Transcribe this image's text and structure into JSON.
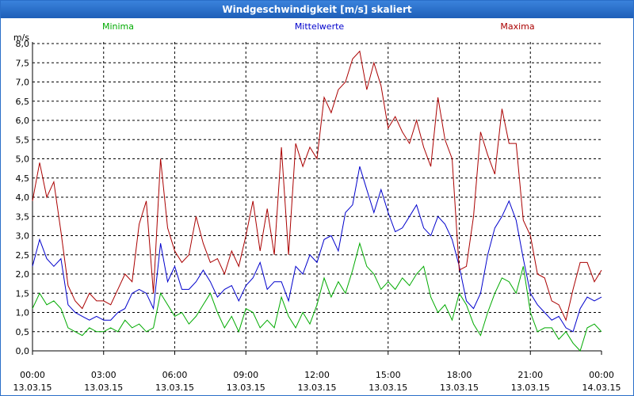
{
  "window": {
    "title": "Windgeschwindigkeit [m/s] skaliert"
  },
  "chart_data": {
    "type": "line",
    "title": "Windgeschwindigkeit [m/s] skaliert",
    "ylabel": "m/s",
    "ylim": [
      0,
      8
    ],
    "yticks": [
      "0,0",
      "0,5",
      "1,0",
      "1,5",
      "2,0",
      "2,5",
      "3,0",
      "3,5",
      "4,0",
      "4,5",
      "5,0",
      "5,5",
      "6,0",
      "6,5",
      "7,0",
      "7,5",
      "8,0"
    ],
    "xlim_hours": [
      0,
      24
    ],
    "xticks": [
      {
        "time": "00:00",
        "date": "13.03.15"
      },
      {
        "time": "03:00",
        "date": "13.03.15"
      },
      {
        "time": "06:00",
        "date": "13.03.15"
      },
      {
        "time": "09:00",
        "date": "13.03.15"
      },
      {
        "time": "12:00",
        "date": "13.03.15"
      },
      {
        "time": "15:00",
        "date": "13.03.15"
      },
      {
        "time": "18:00",
        "date": "13.03.15"
      },
      {
        "time": "21:00",
        "date": "13.03.15"
      },
      {
        "time": "00:00",
        "date": "14.03.15"
      }
    ],
    "grid": true,
    "series": [
      {
        "name": "Minima",
        "color": "#00aa00",
        "legend_pos": "left",
        "x": [
          0,
          0.3,
          0.6,
          0.9,
          1.2,
          1.5,
          1.8,
          2.1,
          2.4,
          2.7,
          3.0,
          3.3,
          3.6,
          3.9,
          4.2,
          4.5,
          4.8,
          5.1,
          5.4,
          5.7,
          6.0,
          6.3,
          6.6,
          6.9,
          7.2,
          7.5,
          7.8,
          8.1,
          8.4,
          8.7,
          9.0,
          9.3,
          9.6,
          9.9,
          10.2,
          10.5,
          10.8,
          11.1,
          11.4,
          11.7,
          12.0,
          12.3,
          12.6,
          12.9,
          13.2,
          13.5,
          13.8,
          14.1,
          14.4,
          14.7,
          15.0,
          15.3,
          15.6,
          15.9,
          16.2,
          16.5,
          16.8,
          17.1,
          17.4,
          17.7,
          18.0,
          18.3,
          18.6,
          18.9,
          19.2,
          19.5,
          19.8,
          20.1,
          20.4,
          20.7,
          21.0,
          21.3,
          21.6,
          21.9,
          22.2,
          22.5,
          22.8,
          23.1,
          23.4,
          23.7,
          24.0
        ],
        "values": [
          1.1,
          1.5,
          1.2,
          1.3,
          1.1,
          0.6,
          0.5,
          0.4,
          0.6,
          0.5,
          0.5,
          0.6,
          0.5,
          0.8,
          0.6,
          0.7,
          0.5,
          0.6,
          1.5,
          1.2,
          0.9,
          1.0,
          0.7,
          0.9,
          1.2,
          1.5,
          1.0,
          0.6,
          0.9,
          0.5,
          1.1,
          1.0,
          0.6,
          0.8,
          0.6,
          1.4,
          0.9,
          0.6,
          1.0,
          0.7,
          1.2,
          1.9,
          1.4,
          1.8,
          1.5,
          2.1,
          2.8,
          2.2,
          2.0,
          1.6,
          1.8,
          1.6,
          1.9,
          1.7,
          2.0,
          2.2,
          1.4,
          1.0,
          1.2,
          0.8,
          1.5,
          1.2,
          0.7,
          0.4,
          1.0,
          1.5,
          1.9,
          1.8,
          1.5,
          2.2,
          1.0,
          0.5,
          0.6,
          0.6,
          0.3,
          0.5,
          0.2,
          0.0,
          0.6,
          0.7,
          0.5
        ]
      },
      {
        "name": "Mittelwerte",
        "color": "#0000cc",
        "legend_pos": "center",
        "x": [
          0,
          0.3,
          0.6,
          0.9,
          1.2,
          1.5,
          1.8,
          2.1,
          2.4,
          2.7,
          3.0,
          3.3,
          3.6,
          3.9,
          4.2,
          4.5,
          4.8,
          5.1,
          5.4,
          5.7,
          6.0,
          6.3,
          6.6,
          6.9,
          7.2,
          7.5,
          7.8,
          8.1,
          8.4,
          8.7,
          9.0,
          9.3,
          9.6,
          9.9,
          10.2,
          10.5,
          10.8,
          11.1,
          11.4,
          11.7,
          12.0,
          12.3,
          12.6,
          12.9,
          13.2,
          13.5,
          13.8,
          14.1,
          14.4,
          14.7,
          15.0,
          15.3,
          15.6,
          15.9,
          16.2,
          16.5,
          16.8,
          17.1,
          17.4,
          17.7,
          18.0,
          18.3,
          18.6,
          18.9,
          19.2,
          19.5,
          19.8,
          20.1,
          20.4,
          20.7,
          21.0,
          21.3,
          21.6,
          21.9,
          22.2,
          22.5,
          22.8,
          23.1,
          23.4,
          23.7,
          24.0
        ],
        "values": [
          2.2,
          2.9,
          2.4,
          2.2,
          2.4,
          1.2,
          1.0,
          0.9,
          0.8,
          0.9,
          0.8,
          0.8,
          1.0,
          1.1,
          1.5,
          1.6,
          1.5,
          1.1,
          2.8,
          1.8,
          2.2,
          1.6,
          1.6,
          1.8,
          2.1,
          1.8,
          1.4,
          1.6,
          1.7,
          1.3,
          1.7,
          1.9,
          2.3,
          1.6,
          1.8,
          1.8,
          1.3,
          2.2,
          2.0,
          2.5,
          2.3,
          2.9,
          3.0,
          2.6,
          3.6,
          3.8,
          4.8,
          4.2,
          3.6,
          4.2,
          3.6,
          3.1,
          3.2,
          3.5,
          3.8,
          3.2,
          3.0,
          3.5,
          3.3,
          2.9,
          2.2,
          1.3,
          1.1,
          1.5,
          2.5,
          3.2,
          3.5,
          3.9,
          3.4,
          2.4,
          1.5,
          1.2,
          1.0,
          0.8,
          0.9,
          0.6,
          0.5,
          1.1,
          1.4,
          1.3,
          1.4
        ]
      },
      {
        "name": "Maxima",
        "color": "#aa0000",
        "legend_pos": "right",
        "x": [
          0,
          0.3,
          0.6,
          0.9,
          1.2,
          1.5,
          1.8,
          2.1,
          2.4,
          2.7,
          3.0,
          3.3,
          3.6,
          3.9,
          4.2,
          4.5,
          4.8,
          5.1,
          5.4,
          5.7,
          6.0,
          6.3,
          6.6,
          6.9,
          7.2,
          7.5,
          7.8,
          8.1,
          8.4,
          8.7,
          9.0,
          9.3,
          9.6,
          9.9,
          10.2,
          10.5,
          10.8,
          11.1,
          11.4,
          11.7,
          12.0,
          12.3,
          12.6,
          12.9,
          13.2,
          13.5,
          13.8,
          14.1,
          14.4,
          14.7,
          15.0,
          15.3,
          15.6,
          15.9,
          16.2,
          16.5,
          16.8,
          17.1,
          17.4,
          17.7,
          18.0,
          18.3,
          18.6,
          18.9,
          19.2,
          19.5,
          19.8,
          20.1,
          20.4,
          20.7,
          21.0,
          21.3,
          21.6,
          21.9,
          22.2,
          22.5,
          22.8,
          23.1,
          23.4,
          23.7,
          24.0
        ],
        "values": [
          3.9,
          4.9,
          4.0,
          4.4,
          3.1,
          1.7,
          1.3,
          1.1,
          1.5,
          1.3,
          1.3,
          1.2,
          1.6,
          2.0,
          1.8,
          3.3,
          3.9,
          1.5,
          5.0,
          3.2,
          2.6,
          2.3,
          2.5,
          3.5,
          2.8,
          2.3,
          2.4,
          2.0,
          2.6,
          2.2,
          3.0,
          3.9,
          2.6,
          3.7,
          2.5,
          5.3,
          2.5,
          5.4,
          4.8,
          5.3,
          5.0,
          6.6,
          6.2,
          6.8,
          7.0,
          7.6,
          7.8,
          6.8,
          7.5,
          6.9,
          5.8,
          6.1,
          5.7,
          5.4,
          6.0,
          5.3,
          4.8,
          6.6,
          5.5,
          5.0,
          2.1,
          2.2,
          3.5,
          5.7,
          5.1,
          4.6,
          6.3,
          5.4,
          5.4,
          3.4,
          3.0,
          2.0,
          1.9,
          1.3,
          1.2,
          0.8,
          1.6,
          2.3,
          2.3,
          1.8,
          2.1
        ]
      }
    ]
  }
}
